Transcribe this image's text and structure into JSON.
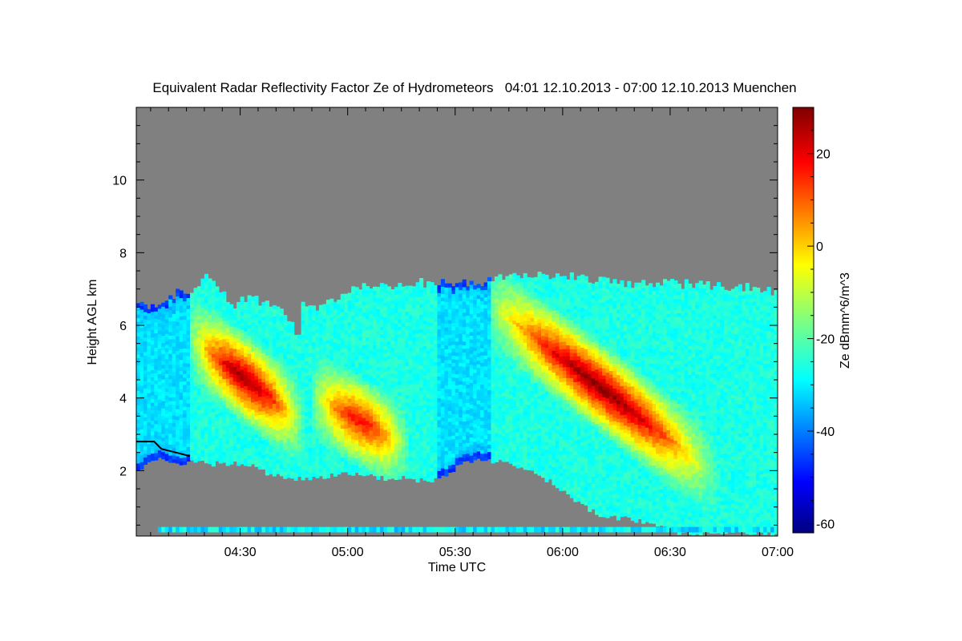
{
  "chart_data": {
    "type": "heatmap",
    "title": "Equivalent Radar Reflectivity Factor Ze of Hydrometeors   04:01 12.10.2013 - 07:00 12.10.2013 Muenchen",
    "xlabel": "Time UTC",
    "ylabel": "Height AGL km",
    "colorbar_label": "Ze dBmm^6/m^3",
    "x_ticks": [
      "04:30",
      "05:00",
      "05:30",
      "06:00",
      "06:30",
      "07:00"
    ],
    "x_tick_minutes": [
      30,
      60,
      90,
      120,
      150,
      180
    ],
    "xlim_minutes_after_0400": [
      1,
      180
    ],
    "y_ticks": [
      2,
      4,
      6,
      8,
      10
    ],
    "ylim": [
      0.2,
      12
    ],
    "colorbar_ticks": [
      20,
      0,
      -20,
      -40,
      -60
    ],
    "colorbar_range": [
      -62,
      30
    ],
    "colormap": "jet",
    "no_data_color": "#808080",
    "echo_top_km": [
      [
        1,
        6.6
      ],
      [
        6,
        6.4
      ],
      [
        10,
        6.8
      ],
      [
        14,
        6.9
      ],
      [
        18,
        7.0
      ],
      [
        20,
        7.3
      ],
      [
        24,
        6.9
      ],
      [
        28,
        6.5
      ],
      [
        31,
        6.7
      ],
      [
        36,
        6.6
      ],
      [
        40,
        6.4
      ],
      [
        44,
        6.0
      ],
      [
        46,
        5.6
      ],
      [
        47,
        6.5
      ],
      [
        52,
        6.5
      ],
      [
        57,
        6.7
      ],
      [
        62,
        7.0
      ],
      [
        70,
        7.0
      ],
      [
        80,
        7.1
      ],
      [
        90,
        7.1
      ],
      [
        100,
        7.2
      ],
      [
        110,
        7.3
      ],
      [
        120,
        7.3
      ],
      [
        130,
        7.2
      ],
      [
        140,
        7.1
      ],
      [
        150,
        7.1
      ],
      [
        160,
        7.1
      ],
      [
        170,
        7.0
      ],
      [
        180,
        6.9
      ]
    ],
    "echo_base_km": [
      [
        1,
        2.0
      ],
      [
        6,
        2.3
      ],
      [
        10,
        2.3
      ],
      [
        14,
        2.2
      ],
      [
        18,
        2.3
      ],
      [
        22,
        2.2
      ],
      [
        28,
        2.2
      ],
      [
        34,
        2.1
      ],
      [
        38,
        1.9
      ],
      [
        42,
        1.8
      ],
      [
        50,
        1.8
      ],
      [
        58,
        1.9
      ],
      [
        64,
        1.9
      ],
      [
        70,
        1.8
      ],
      [
        76,
        1.8
      ],
      [
        82,
        1.7
      ],
      [
        88,
        1.9
      ],
      [
        92,
        2.3
      ],
      [
        98,
        2.3
      ],
      [
        104,
        2.2
      ],
      [
        110,
        2.0
      ],
      [
        116,
        1.7
      ],
      [
        120,
        1.4
      ],
      [
        126,
        1.0
      ],
      [
        130,
        0.8
      ],
      [
        136,
        0.7
      ],
      [
        142,
        0.6
      ],
      [
        148,
        0.5
      ],
      [
        152,
        0.3
      ],
      [
        180,
        0.3
      ]
    ],
    "reflectivity_core": [
      {
        "t0": 16,
        "t1": 56,
        "zmax": 28,
        "h_top": 5.6,
        "h_bot": 2.6
      },
      {
        "t0": 50,
        "t1": 84,
        "zmax": 18,
        "h_top": 4.0,
        "h_bot": 2.2
      },
      {
        "t0": 100,
        "t1": 180,
        "zmax": 30,
        "h_top": 6.5,
        "h_bot": 0.5
      }
    ],
    "black_line_km": [
      [
        1,
        2.8
      ],
      [
        6,
        2.8
      ],
      [
        8,
        2.6
      ],
      [
        12,
        2.5
      ],
      [
        16,
        2.4
      ]
    ]
  }
}
